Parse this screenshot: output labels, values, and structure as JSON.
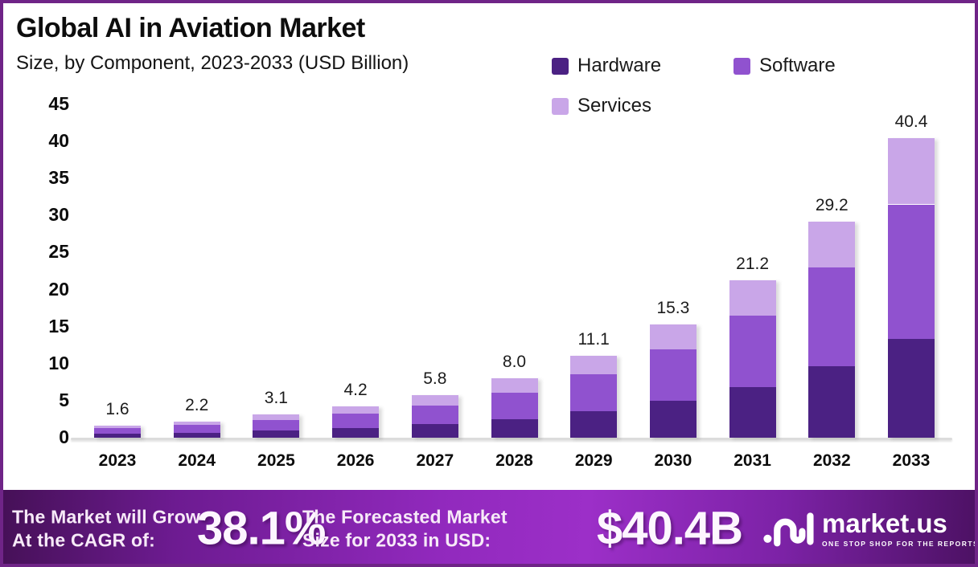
{
  "frame": {
    "border_color": "#6f2487",
    "background": "#ffffff"
  },
  "header": {
    "title": "Global AI in Aviation Market",
    "subtitle": "Size, by Component, 2023-2033 (USD Billion)"
  },
  "legend": {
    "items": [
      {
        "label": "Hardware",
        "color": "#4b2183"
      },
      {
        "label": "Software",
        "color": "#9052cf"
      },
      {
        "label": "Services",
        "color": "#c9a6e8"
      }
    ]
  },
  "chart_data": {
    "type": "bar",
    "stacked": true,
    "title": "Global AI in Aviation Market Size, by Component, 2023-2033 (USD Billion)",
    "xlabel": "",
    "ylabel": "USD Billion",
    "ylim": [
      0,
      45
    ],
    "yticks": [
      0,
      5,
      10,
      15,
      20,
      25,
      30,
      35,
      40,
      45
    ],
    "grid": false,
    "legend_position": "top-right",
    "categories": [
      "2023",
      "2024",
      "2025",
      "2026",
      "2027",
      "2028",
      "2029",
      "2030",
      "2031",
      "2032",
      "2033"
    ],
    "series": [
      {
        "name": "Hardware",
        "color": "#4b2183",
        "values": [
          0.5,
          0.7,
          1.0,
          1.3,
          1.8,
          2.5,
          3.6,
          5.0,
          6.8,
          9.6,
          13.3
        ]
      },
      {
        "name": "Software",
        "color": "#9052cf",
        "values": [
          0.75,
          1.0,
          1.4,
          1.9,
          2.5,
          3.6,
          5.0,
          6.9,
          9.7,
          13.4,
          18.2
        ]
      },
      {
        "name": "Services",
        "color": "#c9a6e8",
        "values": [
          0.35,
          0.5,
          0.7,
          1.0,
          1.5,
          1.9,
          2.5,
          3.4,
          4.7,
          6.2,
          8.9
        ]
      }
    ],
    "totals": [
      "1.6",
      "2.2",
      "3.1",
      "4.2",
      "5.8",
      "8.0",
      "11.1",
      "15.3",
      "21.2",
      "29.2",
      "40.4"
    ]
  },
  "footer": {
    "cagr_label_line1": "The Market will Grow",
    "cagr_label_line2": "At the CAGR of:",
    "cagr_value": "38.1%",
    "forecast_label_line1": "The Forecasted Market",
    "forecast_label_line2": "Size for 2033 in USD:",
    "forecast_value": "$40.4B",
    "logo_text": "market.us",
    "logo_tagline": "ONE STOP SHOP FOR THE REPORTS"
  }
}
